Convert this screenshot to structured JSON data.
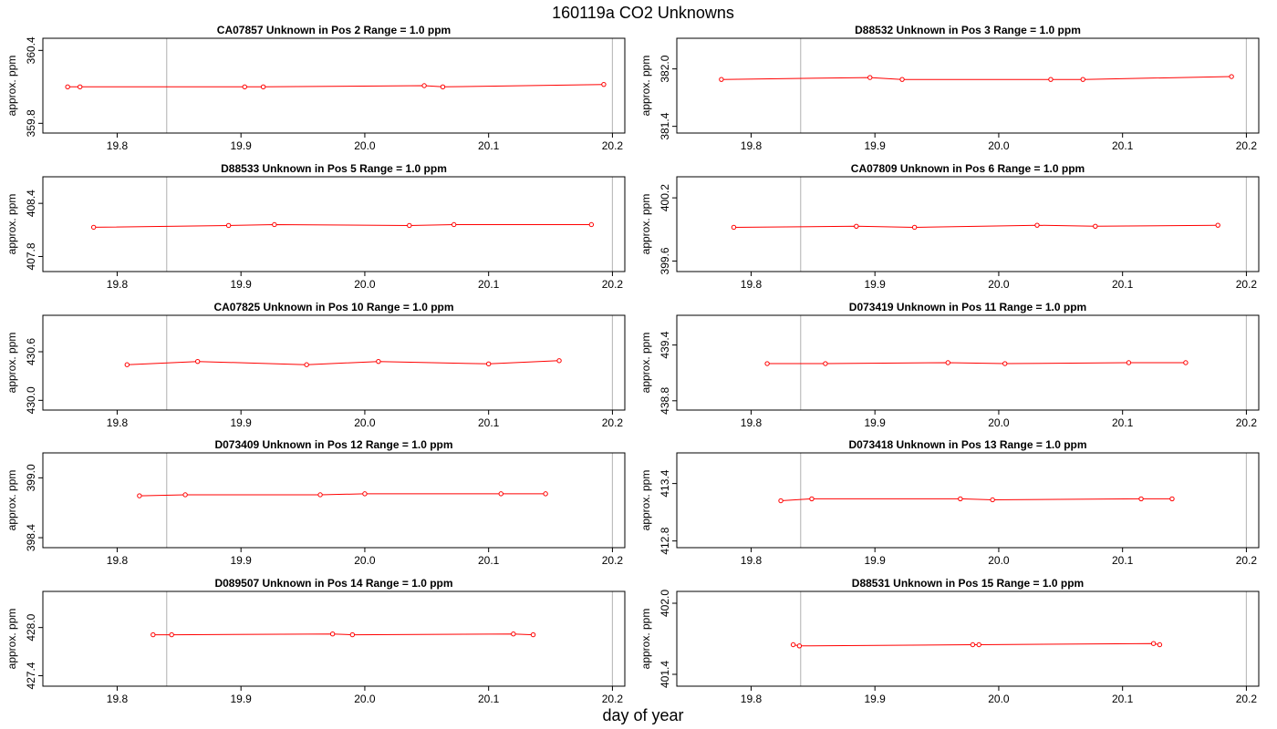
{
  "title": "160119a  CO2 Unknowns",
  "xlabel": "day of year",
  "chart_data": [
    {
      "type": "line",
      "title": "CA07857    Unknown in Pos 2         Range = 1.0 ppm",
      "ylabel": "approx. ppm",
      "xlim": [
        19.74,
        20.21
      ],
      "ylim": [
        359.72,
        360.5
      ],
      "xticks": [
        "19.8",
        "19.9",
        "20.0",
        "20.1",
        "20.2"
      ],
      "yticks": [
        "359.8",
        "360.4"
      ],
      "vlines": [
        19.84,
        20.2
      ],
      "color": "#ff0000",
      "x": [
        19.76,
        19.77,
        19.903,
        19.918,
        20.048,
        20.063,
        20.193
      ],
      "y": [
        360.1,
        360.1,
        360.1,
        360.1,
        360.11,
        360.1,
        360.12
      ]
    },
    {
      "type": "line",
      "title": "D88532    Unknown in Pos 3         Range = 1.0 ppm",
      "ylabel": "approx. ppm",
      "xlim": [
        19.74,
        20.21
      ],
      "ylim": [
        381.33,
        382.32
      ],
      "xticks": [
        "19.8",
        "19.9",
        "20.0",
        "20.1",
        "20.2"
      ],
      "yticks": [
        "381.4",
        "382.0"
      ],
      "vlines": [
        19.84,
        20.2
      ],
      "color": "#ff0000",
      "x": [
        19.776,
        19.896,
        19.922,
        20.042,
        20.068,
        20.188
      ],
      "y": [
        381.89,
        381.91,
        381.89,
        381.89,
        381.89,
        381.92
      ]
    },
    {
      "type": "line",
      "title": "D88533    Unknown in Pos 5         Range = 1.0 ppm",
      "ylabel": "approx. ppm",
      "xlim": [
        19.74,
        20.21
      ],
      "ylim": [
        407.63,
        408.7
      ],
      "xticks": [
        "19.8",
        "19.9",
        "20.0",
        "20.1",
        "20.2"
      ],
      "yticks": [
        "407.8",
        "408.4"
      ],
      "vlines": [
        19.84,
        20.2
      ],
      "color": "#ff0000",
      "x": [
        19.781,
        19.89,
        19.927,
        20.036,
        20.072,
        20.183
      ],
      "y": [
        408.13,
        408.15,
        408.16,
        408.15,
        408.16,
        408.16
      ]
    },
    {
      "type": "line",
      "title": "CA07809    Unknown in Pos 6         Range = 1.0 ppm",
      "ylabel": "approx. ppm",
      "xlim": [
        19.74,
        20.21
      ],
      "ylim": [
        399.5,
        400.4
      ],
      "xticks": [
        "19.8",
        "19.9",
        "20.0",
        "20.1",
        "20.2"
      ],
      "yticks": [
        "399.6",
        "400.2"
      ],
      "vlines": [
        19.84,
        20.2
      ],
      "color": "#ff0000",
      "x": [
        19.786,
        19.885,
        19.932,
        20.031,
        20.078,
        20.177
      ],
      "y": [
        399.92,
        399.93,
        399.92,
        399.94,
        399.93,
        399.94
      ]
    },
    {
      "type": "line",
      "title": "CA07825    Unknown in Pos 10         Range = 1.0 ppm",
      "ylabel": "approx. ppm",
      "xlim": [
        19.74,
        20.21
      ],
      "ylim": [
        429.88,
        431.05
      ],
      "xticks": [
        "19.8",
        "19.9",
        "20.0",
        "20.1",
        "20.2"
      ],
      "yticks": [
        "430.0",
        "430.6"
      ],
      "vlines": [
        19.84,
        20.2
      ],
      "color": "#ff0000",
      "x": [
        19.808,
        19.865,
        19.953,
        20.011,
        20.1,
        20.157
      ],
      "y": [
        430.44,
        430.48,
        430.44,
        430.48,
        430.45,
        430.49
      ]
    },
    {
      "type": "line",
      "title": "D073419    Unknown in Pos 11         Range = 1.0 ppm",
      "ylabel": "approx. ppm",
      "xlim": [
        19.74,
        20.21
      ],
      "ylim": [
        438.7,
        439.72
      ],
      "xticks": [
        "19.8",
        "19.9",
        "20.0",
        "20.1",
        "20.2"
      ],
      "yticks": [
        "438.8",
        "439.4"
      ],
      "vlines": [
        19.84,
        20.2
      ],
      "color": "#ff0000",
      "x": [
        19.813,
        19.86,
        19.959,
        20.005,
        20.105,
        20.151
      ],
      "y": [
        439.2,
        439.2,
        439.21,
        439.2,
        439.21,
        439.21
      ]
    },
    {
      "type": "line",
      "title": "D073409    Unknown in Pos 12         Range = 1.0 ppm",
      "ylabel": "approx. ppm",
      "xlim": [
        19.74,
        20.21
      ],
      "ylim": [
        398.3,
        399.25
      ],
      "xticks": [
        "19.8",
        "19.9",
        "20.0",
        "20.1",
        "20.2"
      ],
      "yticks": [
        "398.4",
        "399.0"
      ],
      "vlines": [
        19.84,
        20.2
      ],
      "color": "#ff0000",
      "x": [
        19.818,
        19.855,
        19.964,
        20.0,
        20.11,
        20.146
      ],
      "y": [
        398.82,
        398.83,
        398.83,
        398.84,
        398.84,
        398.84
      ]
    },
    {
      "type": "line",
      "title": "D073418    Unknown in Pos 13         Range = 1.0 ppm",
      "ylabel": "approx. ppm",
      "xlim": [
        19.74,
        20.21
      ],
      "ylim": [
        412.73,
        413.72
      ],
      "xticks": [
        "19.8",
        "19.9",
        "20.0",
        "20.1",
        "20.2"
      ],
      "yticks": [
        "412.8",
        "413.4"
      ],
      "vlines": [
        19.84,
        20.2
      ],
      "color": "#ff0000",
      "x": [
        19.824,
        19.849,
        19.969,
        19.995,
        20.115,
        20.14
      ],
      "y": [
        413.22,
        413.24,
        413.24,
        413.23,
        413.24,
        413.24
      ]
    },
    {
      "type": "line",
      "title": "D089507    Unknown in Pos 14         Range = 1.0 ppm",
      "ylabel": "approx. ppm",
      "xlim": [
        19.74,
        20.21
      ],
      "ylim": [
        427.27,
        428.45
      ],
      "xticks": [
        "19.8",
        "19.9",
        "20.0",
        "20.1",
        "20.2"
      ],
      "yticks": [
        "427.4",
        "428.0"
      ],
      "vlines": [
        19.84,
        20.2
      ],
      "color": "#ff0000",
      "x": [
        19.829,
        19.844,
        19.974,
        19.99,
        20.12,
        20.136
      ],
      "y": [
        427.91,
        427.91,
        427.92,
        427.91,
        427.92,
        427.91
      ]
    },
    {
      "type": "line",
      "title": "D88531    Unknown in Pos 15         Range = 1.0 ppm",
      "ylabel": "approx. ppm",
      "xlim": [
        19.74,
        20.21
      ],
      "ylim": [
        401.3,
        402.1
      ],
      "xticks": [
        "19.8",
        "19.9",
        "20.0",
        "20.1",
        "20.2"
      ],
      "yticks": [
        "401.4",
        "402.0"
      ],
      "vlines": [
        19.84,
        20.2
      ],
      "color": "#ff0000",
      "x": [
        19.834,
        19.839,
        19.979,
        19.984,
        20.125,
        20.13
      ],
      "y": [
        401.65,
        401.64,
        401.65,
        401.65,
        401.66,
        401.65
      ]
    }
  ]
}
